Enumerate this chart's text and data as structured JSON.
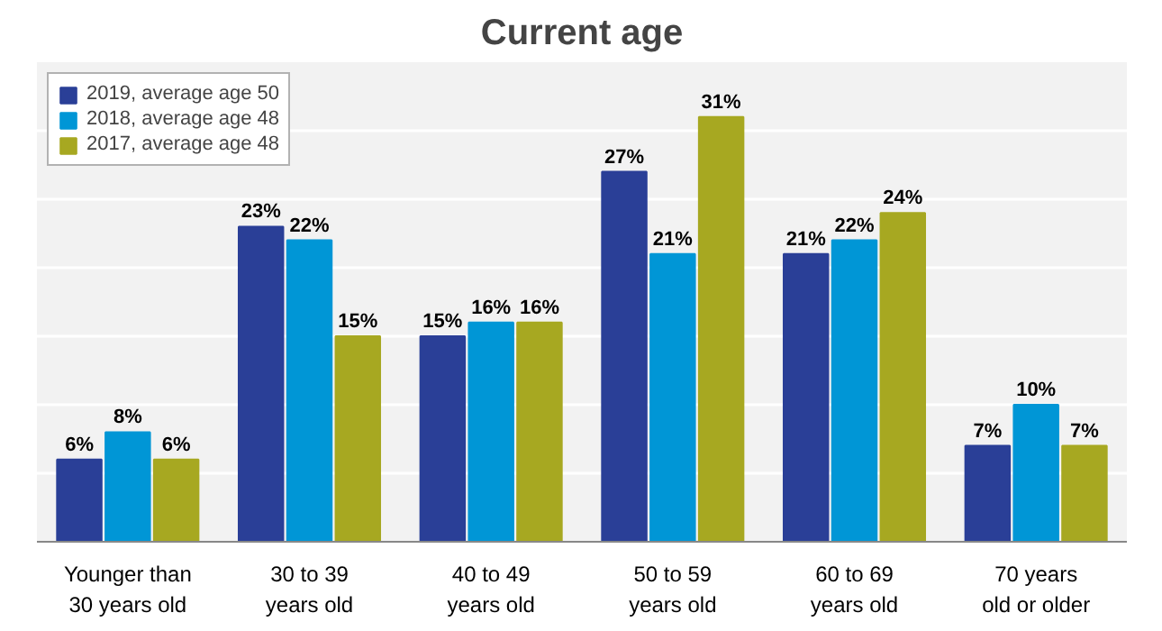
{
  "chart_data": {
    "type": "bar",
    "title": "Current age",
    "categories": [
      "Younger than\n30 years old",
      "30 to 39\nyears old",
      "40 to 49\nyears old",
      "50 to 59\nyears old",
      "60 to 69\nyears old",
      "70 years\nold or older"
    ],
    "series": [
      {
        "name": "2019, average age 50",
        "color": "#2a3f97",
        "values": [
          6,
          23,
          15,
          27,
          21,
          7
        ],
        "value_labels": [
          "6%",
          "23%",
          "15%",
          "27%",
          "21%",
          "7%"
        ]
      },
      {
        "name": "2018, average age 48",
        "color": "#0096d6",
        "values": [
          8,
          22,
          16,
          21,
          22,
          10
        ],
        "value_labels": [
          "8%",
          "22%",
          "16%",
          "21%",
          "22%",
          "10%"
        ]
      },
      {
        "name": "2017, average age 48",
        "color": "#a7a821",
        "values": [
          6,
          15,
          16,
          31,
          24,
          7
        ],
        "value_labels": [
          "6%",
          "15%",
          "16%",
          "31%",
          "24%",
          "7%"
        ]
      }
    ],
    "ylim": [
      0,
      35
    ],
    "yticks": [
      {
        "value": 0,
        "label": null
      },
      {
        "value": 5,
        "label": null
      },
      {
        "value": 10,
        "label": null
      },
      {
        "value": 15,
        "label": null
      },
      {
        "value": 20,
        "label": null
      },
      {
        "value": 25,
        "label": null
      },
      {
        "value": 30,
        "label": null
      }
    ],
    "tick_labels": "x",
    "grid": "y",
    "legend": "top left"
  }
}
